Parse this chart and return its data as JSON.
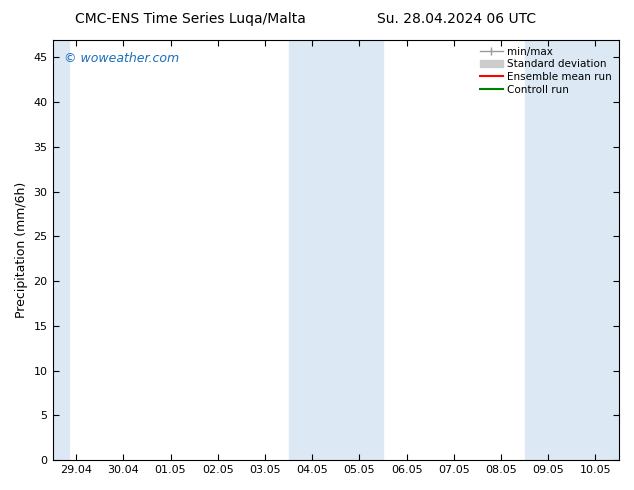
{
  "title_left": "CMC-ENS Time Series Luqa/Malta",
  "title_right": "Su. 28.04.2024 06 UTC",
  "ylabel": "Precipitation (mm/6h)",
  "x_tick_labels": [
    "29.04",
    "30.04",
    "01.05",
    "02.05",
    "03.05",
    "04.05",
    "05.05",
    "06.05",
    "07.05",
    "08.05",
    "09.05",
    "10.05"
  ],
  "ylim": [
    0,
    47
  ],
  "yticks": [
    0,
    5,
    10,
    15,
    20,
    25,
    30,
    35,
    40,
    45
  ],
  "shade_color": "#dce9f5",
  "watermark": "© woweather.com",
  "watermark_color": "#1a6fba",
  "background_color": "#ffffff",
  "plot_bg_color": "#ffffff",
  "legend_labels": [
    "min/max",
    "Standard deviation",
    "Ensemble mean run",
    "Controll run"
  ],
  "legend_colors": [
    "#aaaaaa",
    "#cccccc",
    "#ff0000",
    "#008000"
  ],
  "minmax_line_color": "#999999",
  "std_color": "#cccccc",
  "ens_color": "#ff0000",
  "ctrl_color": "#008000"
}
